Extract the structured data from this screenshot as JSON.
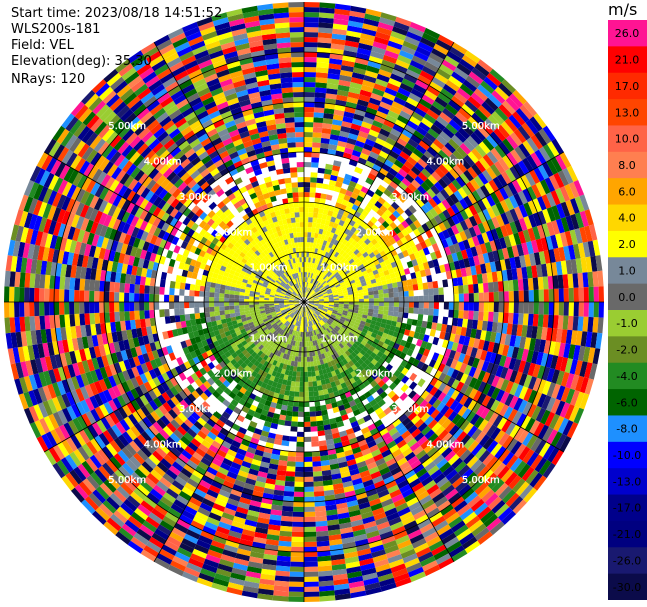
{
  "header": {
    "start_time": "Start time: 2023/08/18 14:51:52",
    "instrument": "WLS200s-181",
    "field": "Field: VEL",
    "elevation": "Elevation(deg): 35.30",
    "nrays": "NRays: 120"
  },
  "ppi": {
    "center": {
      "x": 304,
      "y": 302
    },
    "max_range_km": 6.0,
    "ring_labels": [
      {
        "text": "1.00km",
        "range_km": 1.0
      },
      {
        "text": "2.00km",
        "range_km": 2.0
      },
      {
        "text": "3.00km",
        "range_km": 3.0
      },
      {
        "text": "4.00km",
        "range_km": 4.0
      },
      {
        "text": "5.00km",
        "range_km": 5.0
      }
    ],
    "spokes_deg": [
      0,
      30,
      60,
      90,
      120,
      150,
      180,
      210,
      240,
      270,
      300,
      330
    ],
    "nrays": 120,
    "gate_km": 0.1
  },
  "colorbar": {
    "unit": "m/s",
    "levels": [
      {
        "label": "26.0",
        "color": "#ff1493"
      },
      {
        "label": "21.0",
        "color": "#ff0000"
      },
      {
        "label": "17.0",
        "color": "#ff2a00"
      },
      {
        "label": "13.0",
        "color": "#ff4500"
      },
      {
        "label": "10.0",
        "color": "#ff6347"
      },
      {
        "label": "8.0",
        "color": "#ff7f50"
      },
      {
        "label": "6.0",
        "color": "#ffa500"
      },
      {
        "label": "4.0",
        "color": "#ffd700"
      },
      {
        "label": "2.0",
        "color": "#ffff00"
      },
      {
        "label": "1.0",
        "color": "#778899"
      },
      {
        "label": "0.0",
        "color": "#696969"
      },
      {
        "label": "-1.0",
        "color": "#9acd32"
      },
      {
        "label": "-2.0",
        "color": "#6b8e23"
      },
      {
        "label": "-4.0",
        "color": "#228b22"
      },
      {
        "label": "-6.0",
        "color": "#006400"
      },
      {
        "label": "-8.0",
        "color": "#1e90ff"
      },
      {
        "label": "-10.0",
        "color": "#0000ff"
      },
      {
        "label": "-13.0",
        "color": "#0000cd"
      },
      {
        "label": "-17.0",
        "color": "#00008b"
      },
      {
        "label": "-21.0",
        "color": "#000080"
      },
      {
        "label": "-26.0",
        "color": "#191970"
      },
      {
        "label": "-30.0",
        "color": "#0b0b4a"
      }
    ]
  }
}
